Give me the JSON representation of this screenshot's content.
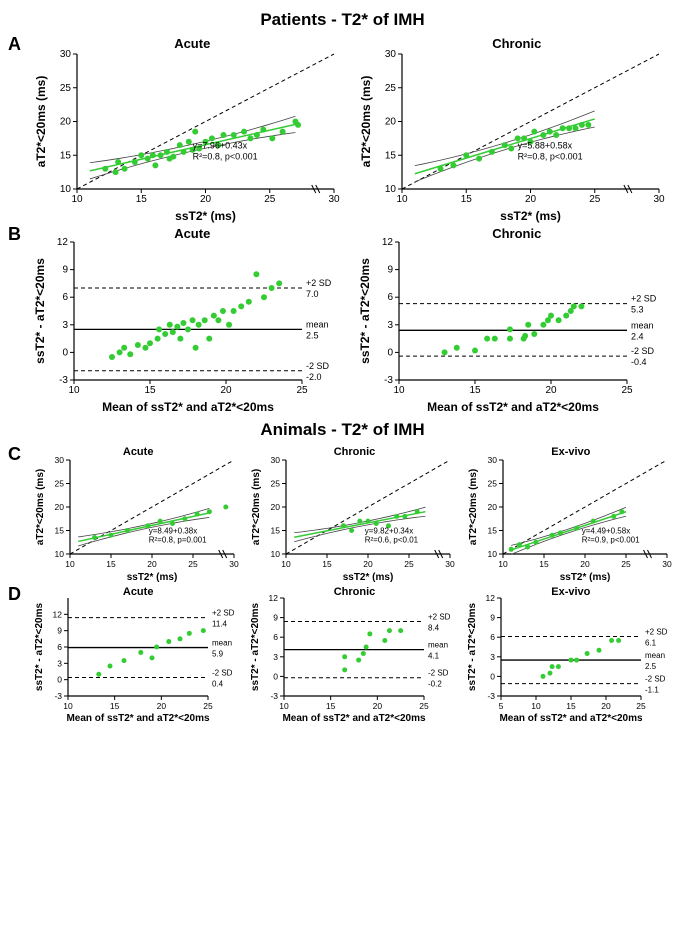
{
  "colors": {
    "marker": "#33cc33",
    "axis": "#000000",
    "ci": "#444444",
    "bg": "#ffffff"
  },
  "marker_radius": 3.0,
  "marker_radius_small": 2.5,
  "section_titles": {
    "patients": "Patients - T2* of IMH",
    "animals": "Animals - T2* of IMH"
  },
  "panels": {
    "A": {
      "letter": "A",
      "plots": [
        {
          "id": "pat-acute-reg",
          "title": "Acute",
          "xlabel": "ssT2* (ms)",
          "ylabel": "aT2*<20ms (ms)",
          "xlim": [
            10,
            30
          ],
          "xticks": [
            10,
            15,
            20,
            25,
            30
          ],
          "xbreak": [
            27,
            30
          ],
          "ylim": [
            10,
            30
          ],
          "yticks": [
            10,
            15,
            20,
            25,
            30
          ],
          "identity": true,
          "reg": {
            "equation": "y=7.96+0.43x",
            "r2": "R²=0.8, p<0.001",
            "a": 7.96,
            "b": 0.43
          },
          "points": [
            [
              12.2,
              13.0
            ],
            [
              13.0,
              12.5
            ],
            [
              13.2,
              14.0
            ],
            [
              13.7,
              13.0
            ],
            [
              14.5,
              14.0
            ],
            [
              15.0,
              15.0
            ],
            [
              15.5,
              14.5
            ],
            [
              15.9,
              15.0
            ],
            [
              16.1,
              13.5
            ],
            [
              16.5,
              15.0
            ],
            [
              17.0,
              15.5
            ],
            [
              17.2,
              14.5
            ],
            [
              17.5,
              14.8
            ],
            [
              18.0,
              16.5
            ],
            [
              18.3,
              15.5
            ],
            [
              18.7,
              17.0
            ],
            [
              19.0,
              15.8
            ],
            [
              19.2,
              18.5
            ],
            [
              19.5,
              16.0
            ],
            [
              20.0,
              17.0
            ],
            [
              20.5,
              17.5
            ],
            [
              21.0,
              16.5
            ],
            [
              21.4,
              18.0
            ],
            [
              22.2,
              18.0
            ],
            [
              23.0,
              18.5
            ],
            [
              23.5,
              17.5
            ],
            [
              24.0,
              18.0
            ],
            [
              24.5,
              18.8
            ],
            [
              25.2,
              17.5
            ],
            [
              26.0,
              18.5
            ],
            [
              27.0,
              20.0
            ],
            [
              27.2,
              19.5
            ]
          ]
        },
        {
          "id": "pat-chronic-reg",
          "title": "Chronic",
          "xlabel": "ssT2* (ms)",
          "ylabel": "aT2*<20ms (ms)",
          "xlim": [
            10,
            30
          ],
          "xticks": [
            10,
            15,
            20,
            25,
            30
          ],
          "xbreak": [
            25,
            30
          ],
          "ylim": [
            10,
            30
          ],
          "yticks": [
            10,
            15,
            20,
            25,
            30
          ],
          "identity": true,
          "reg": {
            "equation": "y=5.88+0.58x",
            "r2": "R²=0.8, p<0.001",
            "a": 5.88,
            "b": 0.58
          },
          "points": [
            [
              13.0,
              13.0
            ],
            [
              14.0,
              13.5
            ],
            [
              15.0,
              15.0
            ],
            [
              16.0,
              14.5
            ],
            [
              17.0,
              15.5
            ],
            [
              18.0,
              16.5
            ],
            [
              18.5,
              16.0
            ],
            [
              19.0,
              17.5
            ],
            [
              19.5,
              17.5
            ],
            [
              20.0,
              17.0
            ],
            [
              20.3,
              18.5
            ],
            [
              21.0,
              18.0
            ],
            [
              21.5,
              18.5
            ],
            [
              22.0,
              18.0
            ],
            [
              22.5,
              19.0
            ],
            [
              23.0,
              19.0
            ],
            [
              23.5,
              19.0
            ],
            [
              24.0,
              19.5
            ],
            [
              24.5,
              19.5
            ]
          ]
        }
      ]
    },
    "B": {
      "letter": "B",
      "plots": [
        {
          "id": "pat-acute-ba",
          "title": "Acute",
          "xlabel": "Mean of ssT2* and aT2*<20ms",
          "ylabel": "ssT2* - aT2*<20ms",
          "xlim": [
            10,
            25
          ],
          "xticks": [
            10,
            15,
            20,
            25
          ],
          "ylim": [
            -3,
            12
          ],
          "yticks": [
            -3,
            0,
            3,
            6,
            9,
            12
          ],
          "ba": {
            "mean": 2.5,
            "upper": 7.0,
            "lower": -2.0,
            "upper_label": "+2 SD",
            "lower_label": "-2 SD",
            "mean_label": "mean"
          },
          "points": [
            [
              12.5,
              -0.5
            ],
            [
              13.0,
              0.0
            ],
            [
              13.3,
              0.5
            ],
            [
              13.7,
              -0.2
            ],
            [
              14.2,
              0.8
            ],
            [
              14.7,
              0.5
            ],
            [
              15.0,
              1.0
            ],
            [
              15.5,
              1.5
            ],
            [
              15.6,
              2.5
            ],
            [
              16.0,
              2.0
            ],
            [
              16.3,
              3.0
            ],
            [
              16.5,
              2.2
            ],
            [
              16.8,
              2.8
            ],
            [
              17.0,
              1.5
            ],
            [
              17.2,
              3.2
            ],
            [
              17.5,
              2.5
            ],
            [
              17.8,
              3.5
            ],
            [
              18.0,
              0.5
            ],
            [
              18.2,
              3.0
            ],
            [
              18.6,
              3.5
            ],
            [
              18.9,
              1.5
            ],
            [
              19.2,
              4.0
            ],
            [
              19.5,
              3.5
            ],
            [
              19.8,
              4.5
            ],
            [
              20.2,
              3.0
            ],
            [
              20.5,
              4.5
            ],
            [
              21.0,
              5.0
            ],
            [
              21.5,
              5.5
            ],
            [
              22.0,
              8.5
            ],
            [
              22.5,
              6.0
            ],
            [
              23.0,
              7.0
            ],
            [
              23.5,
              7.5
            ]
          ]
        },
        {
          "id": "pat-chronic-ba",
          "title": "Chronic",
          "xlabel": "Mean of ssT2* and aT2*<20ms",
          "ylabel": "ssT2* - aT2*<20ms",
          "xlim": [
            10,
            25
          ],
          "xticks": [
            10,
            15,
            20,
            25
          ],
          "ylim": [
            -3,
            12
          ],
          "yticks": [
            -3,
            0,
            3,
            6,
            9,
            12
          ],
          "ba": {
            "mean": 2.4,
            "upper": 5.3,
            "lower": -0.4,
            "upper_label": "+2 SD",
            "lower_label": "-2 SD",
            "mean_label": "mean"
          },
          "points": [
            [
              13.0,
              0.0
            ],
            [
              13.8,
              0.5
            ],
            [
              15.0,
              0.2
            ],
            [
              15.8,
              1.5
            ],
            [
              16.3,
              1.5
            ],
            [
              17.3,
              1.5
            ],
            [
              17.3,
              2.5
            ],
            [
              18.2,
              1.5
            ],
            [
              18.3,
              1.8
            ],
            [
              18.5,
              3.0
            ],
            [
              18.9,
              2.0
            ],
            [
              19.5,
              3.0
            ],
            [
              19.8,
              3.5
            ],
            [
              20.0,
              4.0
            ],
            [
              20.5,
              3.5
            ],
            [
              21.0,
              4.0
            ],
            [
              21.3,
              4.5
            ],
            [
              21.5,
              5.0
            ],
            [
              22.0,
              5.0
            ]
          ]
        }
      ]
    },
    "C": {
      "letter": "C",
      "plots": [
        {
          "id": "ani-acute-reg",
          "title": "Acute",
          "xlabel": "ssT2* (ms)",
          "ylabel": "aT2*<20ms (ms)",
          "xlim": [
            10,
            30
          ],
          "xticks": [
            10,
            15,
            20,
            25,
            30
          ],
          "xbreak": [
            27,
            30
          ],
          "ylim": [
            10,
            30
          ],
          "yticks": [
            10,
            15,
            20,
            25,
            30
          ],
          "identity": true,
          "reg": {
            "equation": "y=8.49+0.38x",
            "r2": "R²=0.8, p=0.001",
            "a": 8.49,
            "b": 0.38
          },
          "points": [
            [
              13.0,
              13.5
            ],
            [
              15.0,
              14.0
            ],
            [
              17.0,
              15.0
            ],
            [
              19.5,
              16.0
            ],
            [
              21.0,
              17.0
            ],
            [
              22.5,
              16.5
            ],
            [
              24.0,
              17.5
            ],
            [
              25.5,
              18.5
            ],
            [
              27.0,
              19.0
            ],
            [
              29.0,
              20.0
            ]
          ]
        },
        {
          "id": "ani-chronic-reg",
          "title": "Chronic",
          "xlabel": "ssT2* (ms)",
          "ylabel": "aT2*<20ms (ms)",
          "xlim": [
            10,
            30
          ],
          "xticks": [
            10,
            15,
            20,
            25,
            30
          ],
          "xbreak": [
            27,
            30
          ],
          "ylim": [
            10,
            30
          ],
          "yticks": [
            10,
            15,
            20,
            25,
            30
          ],
          "identity": true,
          "reg": {
            "equation": "y=9.82+0.34x",
            "r2": "R²=0.6, p<0.01",
            "a": 9.82,
            "b": 0.34
          },
          "points": [
            [
              17.0,
              16.0
            ],
            [
              18.0,
              15.0
            ],
            [
              19.0,
              17.0
            ],
            [
              20.0,
              17.0
            ],
            [
              21.0,
              16.5
            ],
            [
              22.5,
              16.0
            ],
            [
              23.5,
              18.0
            ],
            [
              24.5,
              18.0
            ],
            [
              26.0,
              19.0
            ]
          ]
        },
        {
          "id": "ani-exvivo-reg",
          "title": "Ex-vivo",
          "xlabel": "ssT2* (ms)",
          "ylabel": "aT2*<20ms (ms)",
          "xlim": [
            10,
            30
          ],
          "xticks": [
            10,
            15,
            20,
            25,
            30
          ],
          "xbreak": [
            25,
            30
          ],
          "ylim": [
            10,
            30
          ],
          "yticks": [
            10,
            15,
            20,
            25,
            30
          ],
          "identity": true,
          "reg": {
            "equation": "y=4.49+0.58x",
            "r2": "R²=0.9, p<0.001",
            "a": 4.49,
            "b": 0.58
          },
          "points": [
            [
              11.0,
              11.0
            ],
            [
              12.0,
              12.0
            ],
            [
              13.0,
              11.5
            ],
            [
              14.0,
              12.5
            ],
            [
              16.0,
              14.0
            ],
            [
              17.0,
              14.5
            ],
            [
              19.0,
              15.5
            ],
            [
              21.0,
              17.0
            ],
            [
              23.5,
              18.0
            ],
            [
              24.5,
              19.0
            ]
          ]
        }
      ]
    },
    "D": {
      "letter": "D",
      "plots": [
        {
          "id": "ani-acute-ba",
          "title": "Acute",
          "xlabel": "Mean of ssT2* and aT2*<20ms",
          "ylabel": "ssT2* - aT2*<20ms",
          "xlim": [
            10,
            25
          ],
          "xticks": [
            10,
            15,
            20,
            25
          ],
          "ylim": [
            -3,
            15
          ],
          "yticks": [
            -3,
            0,
            3,
            6,
            9,
            12
          ],
          "ba": {
            "mean": 5.9,
            "upper": 11.4,
            "lower": 0.4,
            "upper_label": "+2 SD",
            "lower_label": "-2 SD",
            "mean_label": "mean"
          },
          "points": [
            [
              13.3,
              1.0
            ],
            [
              14.5,
              2.5
            ],
            [
              16.0,
              3.5
            ],
            [
              17.8,
              5.0
            ],
            [
              19.0,
              4.0
            ],
            [
              19.5,
              6.0
            ],
            [
              20.8,
              7.0
            ],
            [
              22.0,
              7.5
            ],
            [
              23.0,
              8.5
            ],
            [
              24.5,
              9.0
            ]
          ]
        },
        {
          "id": "ani-chronic-ba",
          "title": "Chronic",
          "xlabel": "Mean of ssT2* and aT2*<20ms",
          "ylabel": "ssT2* - aT2*<20ms",
          "xlim": [
            10,
            25
          ],
          "xticks": [
            10,
            15,
            20,
            25
          ],
          "ylim": [
            -3,
            12
          ],
          "yticks": [
            -3,
            0,
            3,
            6,
            9,
            12
          ],
          "ba": {
            "mean": 4.1,
            "upper": 8.4,
            "lower": -0.2,
            "upper_label": "+2 SD",
            "lower_label": "-2 SD",
            "mean_label": "mean"
          },
          "points": [
            [
              16.5,
              1.0
            ],
            [
              16.5,
              3.0
            ],
            [
              18.0,
              2.5
            ],
            [
              18.5,
              3.5
            ],
            [
              18.8,
              4.5
            ],
            [
              19.2,
              6.5
            ],
            [
              20.8,
              5.5
            ],
            [
              21.3,
              7.0
            ],
            [
              22.5,
              7.0
            ]
          ]
        },
        {
          "id": "ani-exvivo-ba",
          "title": "Ex-vivo",
          "xlabel": "Mean of ssT2* and aT2*<20ms",
          "ylabel": "ssT2* - aT2*<20ms",
          "xlim": [
            5,
            25
          ],
          "xticks": [
            5,
            10,
            15,
            20,
            25
          ],
          "ylim": [
            -3,
            12
          ],
          "yticks": [
            -3,
            0,
            3,
            6,
            9,
            12
          ],
          "ba": {
            "mean": 2.5,
            "upper": 6.1,
            "lower": -1.1,
            "upper_label": "+2 SD",
            "lower_label": "-2 SD",
            "mean_label": "mean"
          },
          "points": [
            [
              11.0,
              0.0
            ],
            [
              12.0,
              0.5
            ],
            [
              12.3,
              1.5
            ],
            [
              13.2,
              1.5
            ],
            [
              15.0,
              2.5
            ],
            [
              15.8,
              2.5
            ],
            [
              17.3,
              3.5
            ],
            [
              19.0,
              4.0
            ],
            [
              20.8,
              5.5
            ],
            [
              21.8,
              5.5
            ]
          ]
        }
      ]
    }
  }
}
